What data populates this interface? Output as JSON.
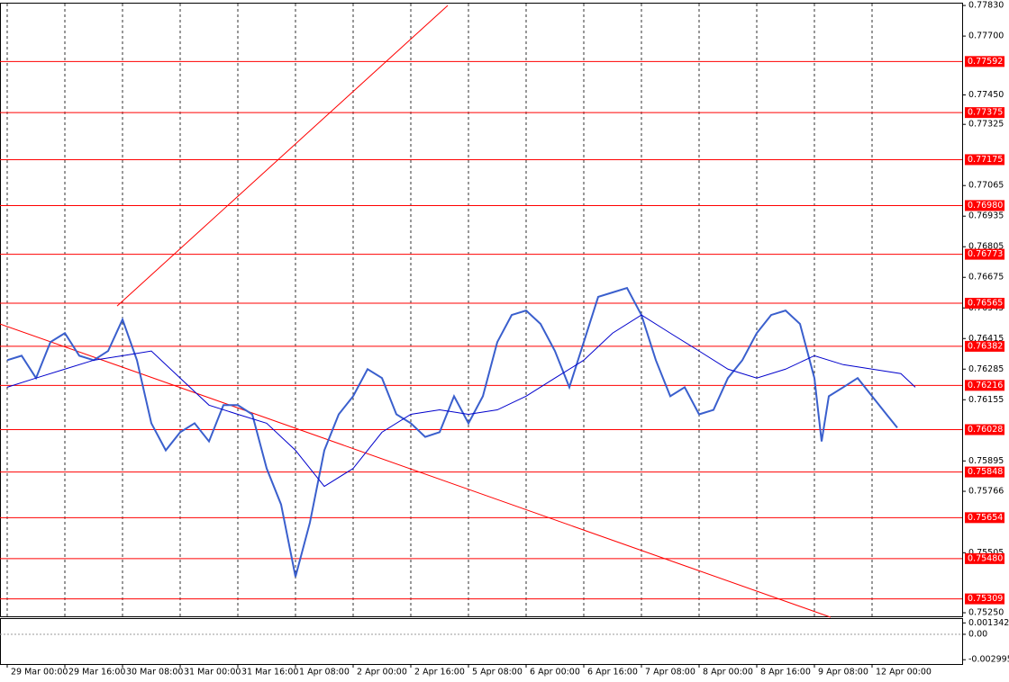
{
  "chart_data": {
    "type": "line",
    "xlim": [
      -2,
      265
    ],
    "ylim": [
      0.75231,
      0.77838
    ],
    "xticks": [
      {
        "value": 0,
        "label": "29 Mar 00:00"
      },
      {
        "value": 16,
        "label": "29 Mar 16:00"
      },
      {
        "value": 32,
        "label": "30 Mar 08:00"
      },
      {
        "value": 48,
        "label": "31 Mar 00:00"
      },
      {
        "value": 64,
        "label": "31 Mar 16:00"
      },
      {
        "value": 80,
        "label": "1 Apr 08:00"
      },
      {
        "value": 96,
        "label": "2 Apr 00:00"
      },
      {
        "value": 112,
        "label": "2 Apr 16:00"
      },
      {
        "value": 128,
        "label": "5 Apr 08:00"
      },
      {
        "value": 144,
        "label": "6 Apr 00:00"
      },
      {
        "value": 160,
        "label": "6 Apr 16:00"
      },
      {
        "value": 176,
        "label": "7 Apr 08:00"
      },
      {
        "value": 192,
        "label": "8 Apr 00:00"
      },
      {
        "value": 208,
        "label": "8 Apr 16:00"
      },
      {
        "value": 224,
        "label": "9 Apr 08:00"
      },
      {
        "value": 240,
        "label": "12 Apr 00:00"
      }
    ],
    "yticks": [
      {
        "value": 0.7783,
        "label": "0.77830"
      },
      {
        "value": 0.777,
        "label": "0.77700"
      },
      {
        "value": 0.7745,
        "label": "0.77450"
      },
      0.77325,
      0.77065,
      0.76935,
      0.76805,
      0.76675,
      0.76545,
      0.76415,
      0.76285,
      0.76155,
      0.75895,
      0.75766,
      0.75505,
      {
        "value": 0.7525,
        "label": "0.75250"
      }
    ],
    "levels": [
      {
        "value": 0.77592,
        "label": "0.77592"
      },
      {
        "value": 0.77375,
        "label": "0.77375"
      },
      {
        "value": 0.77175,
        "label": "0.77175"
      },
      {
        "value": 0.7698,
        "label": "0.76980"
      },
      {
        "value": 0.76773,
        "label": "0.76773"
      },
      {
        "value": 0.76565,
        "label": "0.76565"
      },
      {
        "value": 0.76382,
        "label": "0.76382"
      },
      {
        "value": 0.76216,
        "label": "0.76216"
      },
      {
        "value": 0.76028,
        "label": "0.76028"
      },
      {
        "value": 0.75848,
        "label": "0.75848"
      },
      {
        "value": 0.75654,
        "label": "0.75654"
      },
      {
        "value": 0.7548,
        "label": "0.75480"
      },
      {
        "value": 0.75309,
        "label": "0.75309"
      }
    ],
    "level_color": "#ff0000",
    "trendlines": [
      {
        "x": [
          30.5,
          122.25
        ],
        "values": [
          0.76553,
          0.7783
        ]
      },
      {
        "x": [
          -2,
          228.5
        ],
        "values": [
          0.76477,
          0.75231
        ]
      }
    ],
    "series": [
      {
        "color": "#3a5fcd",
        "x": [
          0,
          4,
          8,
          12,
          16,
          20,
          24,
          28,
          32,
          36,
          40,
          44,
          48,
          52,
          56,
          60,
          64,
          68,
          72,
          76,
          80,
          84,
          88,
          92,
          96,
          100,
          104,
          108,
          112,
          116,
          120,
          124,
          128,
          132,
          136,
          140,
          144,
          148,
          152,
          156,
          160,
          164,
          168,
          172,
          176,
          180,
          184,
          188,
          192,
          196,
          200,
          204,
          208,
          212,
          216,
          220,
          224,
          226,
          228,
          232,
          236,
          240,
          244,
          247
        ],
        "values": [
          0.76323,
          0.76342,
          0.76247,
          0.764,
          0.76438,
          0.76342,
          0.76323,
          0.76362,
          0.76496,
          0.76323,
          0.76055,
          0.7594,
          0.76017,
          0.76055,
          0.75978,
          0.76132,
          0.76132,
          0.76093,
          0.75863,
          0.7571,
          0.75403,
          0.75633,
          0.7594,
          0.76093,
          0.7617,
          0.76285,
          0.76247,
          0.76093,
          0.76055,
          0.75997,
          0.76017,
          0.7617,
          0.76055,
          0.7617,
          0.764,
          0.76515,
          0.76534,
          0.76477,
          0.76362,
          0.76208,
          0.764,
          0.76592,
          0.76611,
          0.7663,
          0.76515,
          0.76323,
          0.7617,
          0.76208,
          0.76093,
          0.76112,
          0.76247,
          0.76323,
          0.76438,
          0.76515,
          0.76534,
          0.76477,
          0.76247,
          0.75978,
          0.7617,
          0.76208,
          0.76247,
          0.7617,
          0.76093,
          0.76036
        ]
      },
      {
        "color": "#0000cc",
        "x": [
          0,
          8,
          16,
          24,
          32,
          40,
          48,
          56,
          64,
          72,
          80,
          88,
          96,
          104,
          112,
          120,
          128,
          136,
          144,
          152,
          160,
          168,
          176,
          184,
          192,
          200,
          208,
          216,
          224,
          232,
          240,
          248,
          252
        ],
        "values": [
          0.76208,
          0.76247,
          0.76285,
          0.76323,
          0.76342,
          0.76362,
          0.76247,
          0.76132,
          0.76093,
          0.76055,
          0.7594,
          0.75787,
          0.75863,
          0.76017,
          0.76093,
          0.76112,
          0.76093,
          0.76112,
          0.7617,
          0.76247,
          0.76323,
          0.76438,
          0.76515,
          0.76438,
          0.76362,
          0.76285,
          0.76247,
          0.76285,
          0.76342,
          0.76304,
          0.76285,
          0.76266,
          0.76208
        ]
      }
    ],
    "osc_ylim": [
      -0.0035,
      0.0018
    ],
    "osc_yticks": [
      0.001342,
      {
        "value": 0,
        "label": "0.00"
      },
      -0.002995
    ]
  }
}
